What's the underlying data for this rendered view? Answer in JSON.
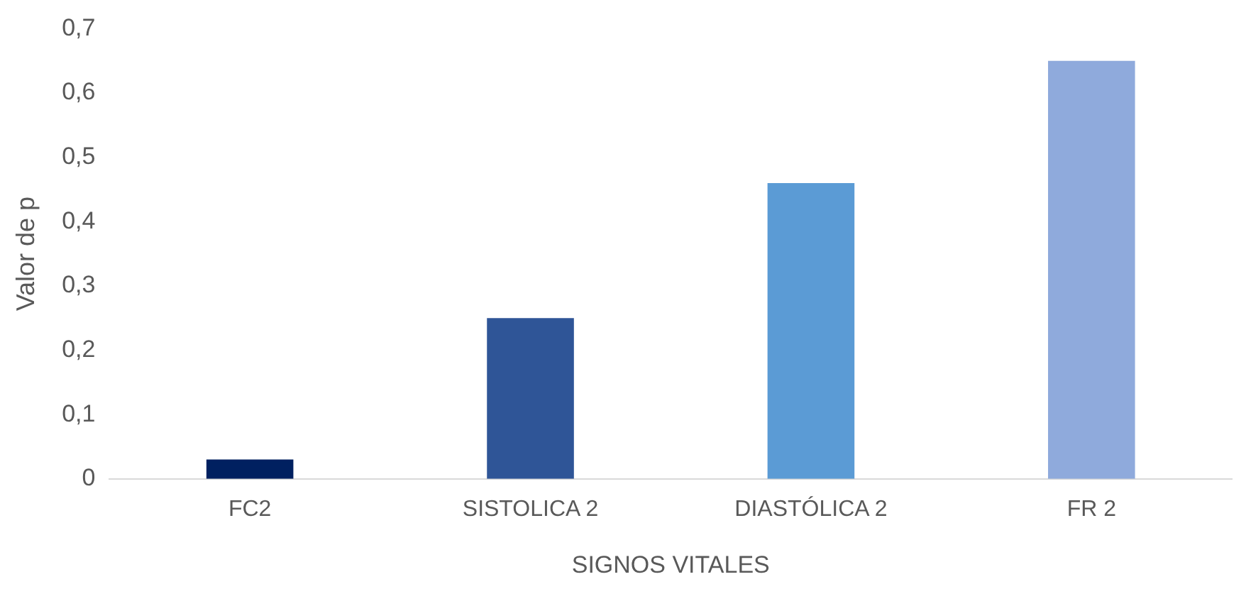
{
  "chart_data": {
    "type": "bar",
    "xlabel": "SIGNOS VITALES",
    "ylabel": "Valor de p",
    "categories": [
      "FC2",
      "SISTOLICA 2",
      "DIASTÓLICA 2",
      "FR 2"
    ],
    "values": [
      0.03,
      0.25,
      0.46,
      0.65
    ],
    "colors": [
      "#002060",
      "#2f5597",
      "#5b9bd5",
      "#8faadc"
    ],
    "ylim": [
      0,
      0.7
    ],
    "yticks": [
      {
        "value": 0,
        "label": "0"
      },
      {
        "value": 0.1,
        "label": "0,1"
      },
      {
        "value": 0.2,
        "label": "0,2"
      },
      {
        "value": 0.3,
        "label": "0,3"
      },
      {
        "value": 0.4,
        "label": "0,4"
      },
      {
        "value": 0.5,
        "label": "0,5"
      },
      {
        "value": 0.6,
        "label": "0,6"
      },
      {
        "value": 0.7,
        "label": "0,7"
      }
    ],
    "grid": false,
    "legend": false
  }
}
